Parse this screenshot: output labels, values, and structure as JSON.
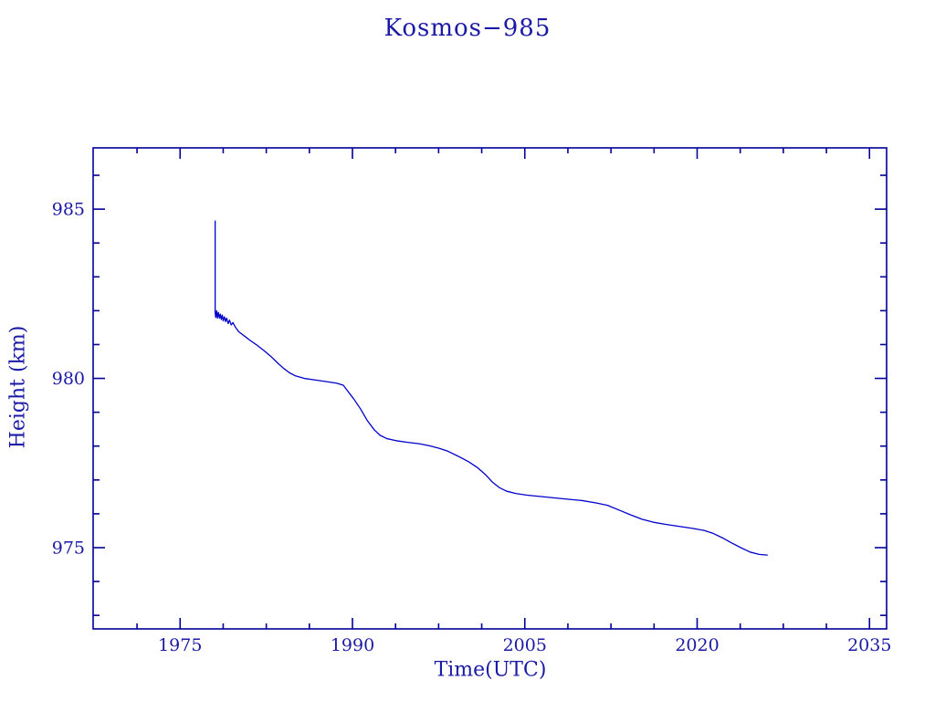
{
  "page": {
    "background": "#ffffff"
  },
  "chart_data": {
    "type": "line",
    "title": "Kosmos−985",
    "xlabel": "Time(UTC)",
    "ylabel": "Height (km)",
    "grid": false,
    "legend": false,
    "colors": {
      "text": "#1a1aa6",
      "axis": "#000099",
      "line": "#0000cc"
    },
    "x_axis": {
      "min": 1967.43,
      "max": 2036.49,
      "major_ticks": [
        1975,
        1990,
        2005,
        2020,
        2035
      ],
      "major_tick_labels": [
        "1975",
        "1990",
        "2005",
        "2020",
        "2035"
      ],
      "minor_step": 3.75,
      "minor_anchor": 1975
    },
    "y_axis": {
      "min": 972.6,
      "max": 986.81,
      "major_ticks": [
        975,
        980,
        985
      ],
      "major_tick_labels": [
        "975",
        "980",
        "985"
      ],
      "minor_step": 1,
      "minor_anchor": 973
    },
    "series": [
      {
        "name": "orbit-height",
        "points": [
          [
            1978.05,
            984.65
          ],
          [
            1978.05,
            981.95
          ],
          [
            1978.1,
            981.8
          ],
          [
            1978.18,
            982.0
          ],
          [
            1978.25,
            981.78
          ],
          [
            1978.33,
            981.95
          ],
          [
            1978.42,
            981.78
          ],
          [
            1978.5,
            981.9
          ],
          [
            1978.58,
            981.74
          ],
          [
            1978.67,
            981.87
          ],
          [
            1978.75,
            981.7
          ],
          [
            1978.85,
            981.82
          ],
          [
            1978.95,
            981.68
          ],
          [
            1979.05,
            981.78
          ],
          [
            1979.18,
            981.62
          ],
          [
            1979.3,
            981.72
          ],
          [
            1979.45,
            981.58
          ],
          [
            1979.6,
            981.65
          ],
          [
            1979.75,
            981.55
          ],
          [
            1979.9,
            981.47
          ],
          [
            1980.1,
            981.38
          ],
          [
            1980.6,
            981.25
          ],
          [
            1981.1,
            981.12
          ],
          [
            1981.7,
            980.98
          ],
          [
            1982.3,
            980.82
          ],
          [
            1982.9,
            980.65
          ],
          [
            1983.5,
            980.45
          ],
          [
            1984.0,
            980.3
          ],
          [
            1984.5,
            980.17
          ],
          [
            1985.0,
            980.08
          ],
          [
            1985.8,
            980.0
          ],
          [
            1986.8,
            979.95
          ],
          [
            1987.8,
            979.9
          ],
          [
            1988.6,
            979.86
          ],
          [
            1989.2,
            979.8
          ],
          [
            1989.6,
            979.62
          ],
          [
            1990.1,
            979.4
          ],
          [
            1990.7,
            979.1
          ],
          [
            1991.3,
            978.75
          ],
          [
            1991.9,
            978.48
          ],
          [
            1992.4,
            978.32
          ],
          [
            1993.0,
            978.22
          ],
          [
            1993.8,
            978.16
          ],
          [
            1994.8,
            978.11
          ],
          [
            1995.8,
            978.07
          ],
          [
            1996.7,
            978.01
          ],
          [
            1997.5,
            977.94
          ],
          [
            1998.3,
            977.85
          ],
          [
            1999.2,
            977.7
          ],
          [
            2000.1,
            977.54
          ],
          [
            2000.9,
            977.36
          ],
          [
            2001.6,
            977.15
          ],
          [
            2002.2,
            976.93
          ],
          [
            2002.8,
            976.77
          ],
          [
            2003.4,
            976.67
          ],
          [
            2004.2,
            976.6
          ],
          [
            2005.2,
            976.55
          ],
          [
            2006.4,
            976.51
          ],
          [
            2007.6,
            976.47
          ],
          [
            2008.8,
            976.43
          ],
          [
            2010.0,
            976.39
          ],
          [
            2011.2,
            976.32
          ],
          [
            2012.2,
            976.25
          ],
          [
            2013.2,
            976.11
          ],
          [
            2014.2,
            975.97
          ],
          [
            2015.2,
            975.84
          ],
          [
            2016.2,
            975.75
          ],
          [
            2017.2,
            975.69
          ],
          [
            2018.4,
            975.63
          ],
          [
            2019.6,
            975.57
          ],
          [
            2020.6,
            975.51
          ],
          [
            2021.4,
            975.42
          ],
          [
            2022.2,
            975.29
          ],
          [
            2023.0,
            975.14
          ],
          [
            2023.8,
            975.0
          ],
          [
            2024.6,
            974.87
          ],
          [
            2025.4,
            974.8
          ],
          [
            2026.1,
            974.78
          ]
        ]
      }
    ]
  }
}
